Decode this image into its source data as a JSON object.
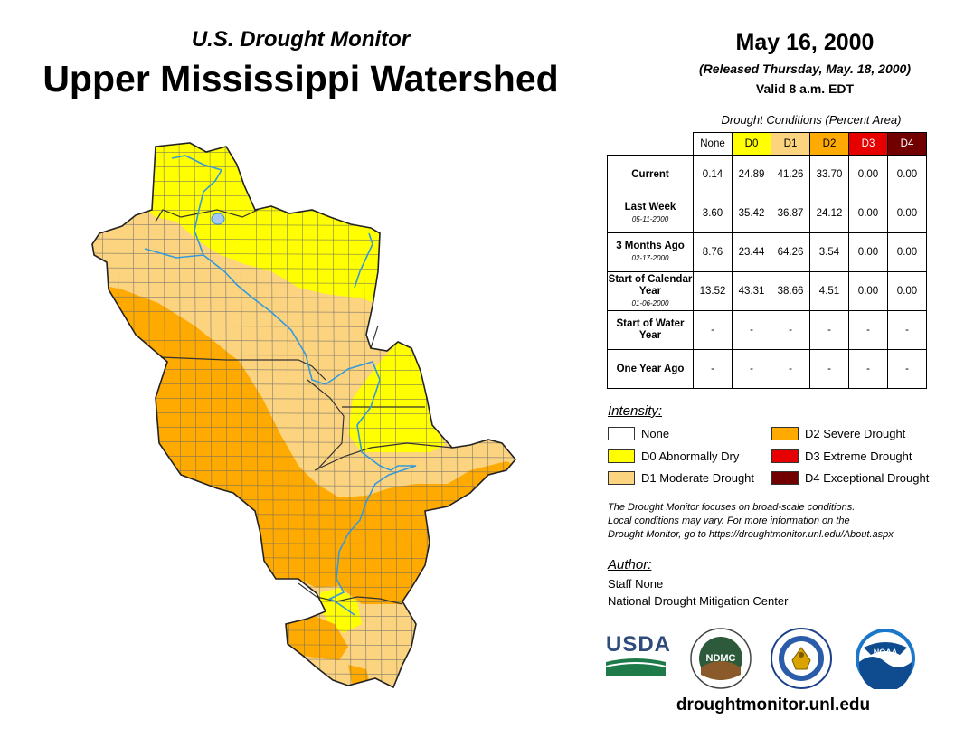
{
  "header": {
    "subtitle": "U.S. Drought Monitor",
    "title": "Upper Mississippi Watershed",
    "date": "May 16, 2000",
    "released": "(Released Thursday, May. 18, 2000)",
    "valid": "Valid 8 a.m. EDT"
  },
  "table": {
    "caption": "Drought Conditions (Percent Area)",
    "columns": [
      "None",
      "D0",
      "D1",
      "D2",
      "D3",
      "D4"
    ],
    "column_colors": [
      "#ffffff",
      "#ffff00",
      "#fcd37f",
      "#ffaa00",
      "#e60000",
      "#730000"
    ],
    "rows": [
      {
        "label": "Current",
        "date": "",
        "values": [
          "0.14",
          "24.89",
          "41.26",
          "33.70",
          "0.00",
          "0.00"
        ]
      },
      {
        "label": "Last Week",
        "date": "05-11-2000",
        "values": [
          "3.60",
          "35.42",
          "36.87",
          "24.12",
          "0.00",
          "0.00"
        ]
      },
      {
        "label": "3 Months Ago",
        "date": "02-17-2000",
        "values": [
          "8.76",
          "23.44",
          "64.26",
          "3.54",
          "0.00",
          "0.00"
        ]
      },
      {
        "label": "Start of Calendar Year",
        "date": "01-06-2000",
        "values": [
          "13.52",
          "43.31",
          "38.66",
          "4.51",
          "0.00",
          "0.00"
        ]
      },
      {
        "label": "Start of Water Year",
        "date": "",
        "values": [
          "-",
          "-",
          "-",
          "-",
          "-",
          "-"
        ]
      },
      {
        "label": "One Year Ago",
        "date": "",
        "values": [
          "-",
          "-",
          "-",
          "-",
          "-",
          "-"
        ]
      }
    ]
  },
  "legend": {
    "title": "Intensity:",
    "items": [
      {
        "label": "None",
        "color": "#ffffff"
      },
      {
        "label": "D0 Abnormally Dry",
        "color": "#ffff00"
      },
      {
        "label": "D1 Moderate Drought",
        "color": "#fcd37f"
      },
      {
        "label": "D2 Severe Drought",
        "color": "#ffaa00"
      },
      {
        "label": "D3 Extreme Drought",
        "color": "#e60000"
      },
      {
        "label": "D4 Exceptional Drought",
        "color": "#730000"
      }
    ]
  },
  "note": {
    "line1": "The Drought Monitor focuses on broad-scale conditions.",
    "line2": "Local conditions may vary. For more information on the",
    "line3": "Drought Monitor, go to https://droughtmonitor.unl.edu/About.aspx"
  },
  "author": {
    "label": "Author:",
    "name": "Staff None",
    "org": "National Drought Mitigation Center"
  },
  "logos": {
    "usda": "USDA",
    "ndmc": "NDMC",
    "noaa": "NOAA"
  },
  "footer": {
    "url": "droughtmonitor.unl.edu"
  },
  "map": {
    "fill_colors": {
      "d0": "#ffff00",
      "d1": "#fcd37f",
      "d2": "#ffaa00"
    },
    "water_color": "#3399dd"
  }
}
